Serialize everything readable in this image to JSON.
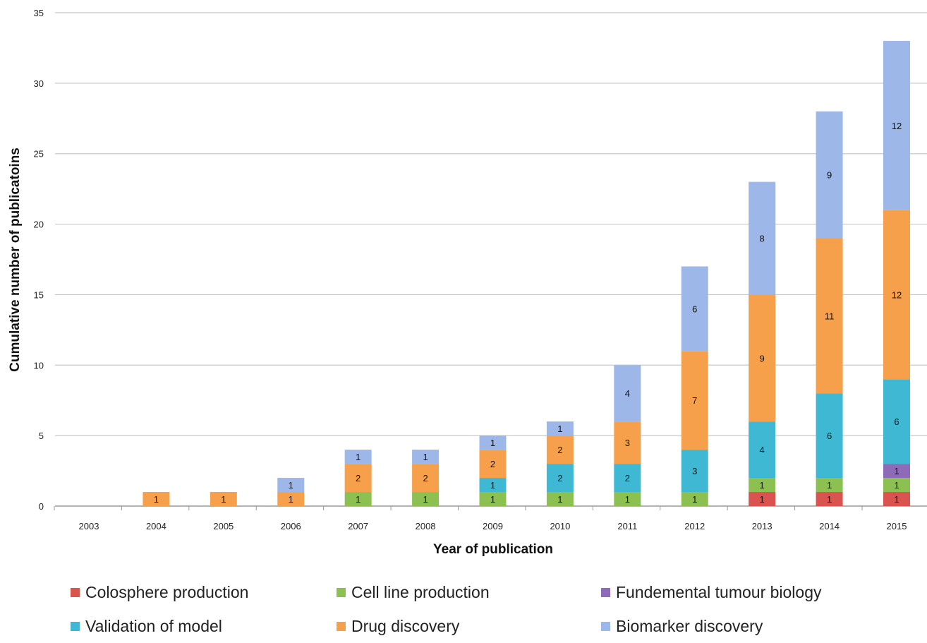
{
  "chart_data": {
    "type": "bar",
    "stacked": true,
    "title": "",
    "xlabel": "Year of publication",
    "ylabel": "Cumulative number of publicatoins",
    "ylim": [
      0,
      35
    ],
    "yticks": [
      "0",
      "5",
      "10",
      "15",
      "20",
      "25",
      "30",
      "35"
    ],
    "grid": true,
    "legend_position": "bottom",
    "categories": [
      "2003",
      "2004",
      "2005",
      "2006",
      "2007",
      "2008",
      "2009",
      "2010",
      "2011",
      "2012",
      "2013",
      "2014",
      "2015"
    ],
    "series": [
      {
        "name": "Colosphere production",
        "color": "#d9534f",
        "values": [
          0,
          0,
          0,
          0,
          0,
          0,
          0,
          0,
          0,
          0,
          1,
          1,
          1
        ]
      },
      {
        "name": "Cell line production",
        "color": "#8cc152",
        "values": [
          0,
          0,
          0,
          0,
          1,
          1,
          1,
          1,
          1,
          1,
          1,
          1,
          1
        ]
      },
      {
        "name": "Fundemental tumour biology",
        "color": "#8e6bb8",
        "values": [
          0,
          0,
          0,
          0,
          0,
          0,
          0,
          0,
          0,
          0,
          0,
          0,
          1
        ]
      },
      {
        "name": "Validation of model",
        "color": "#3fb8d4",
        "values": [
          0,
          0,
          0,
          0,
          0,
          0,
          1,
          2,
          2,
          3,
          4,
          6,
          6
        ]
      },
      {
        "name": "Drug discovery",
        "color": "#f7a04b",
        "values": [
          0,
          1,
          1,
          1,
          2,
          2,
          2,
          2,
          3,
          7,
          9,
          11,
          12
        ]
      },
      {
        "name": "Biomarker discovery",
        "color": "#9db8e8",
        "values": [
          0,
          0,
          0,
          1,
          1,
          1,
          1,
          1,
          4,
          6,
          8,
          9,
          12
        ]
      }
    ]
  }
}
